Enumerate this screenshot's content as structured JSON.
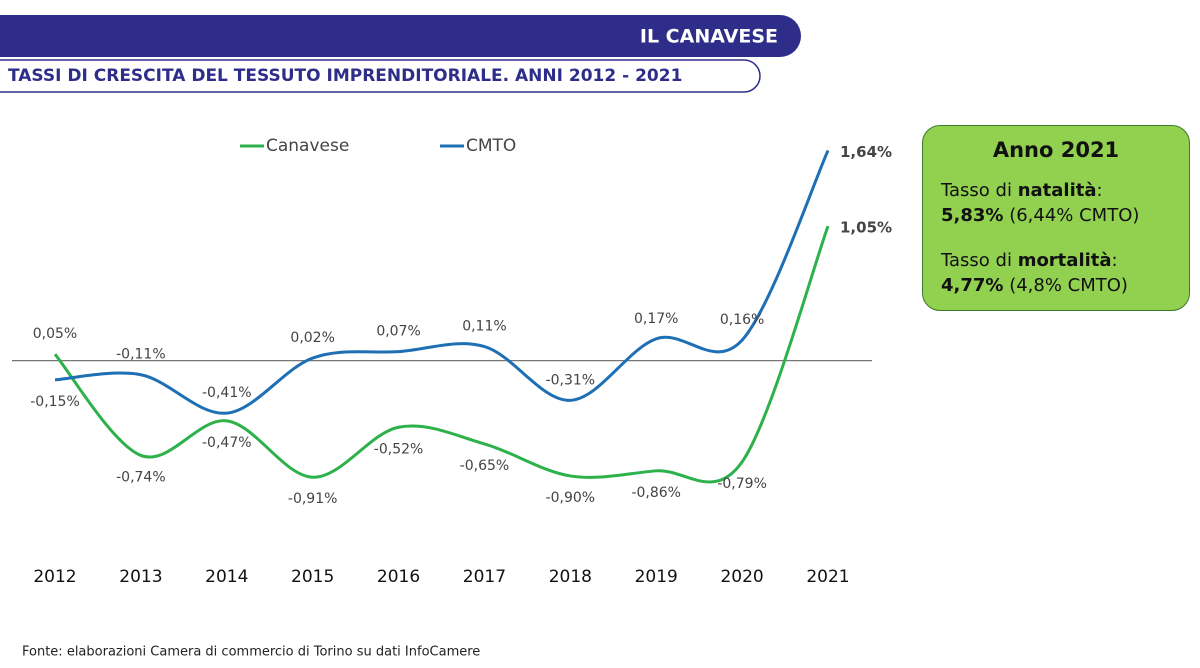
{
  "header": {
    "banner": "IL CANAVESE",
    "subtitle": "TASSI DI CRESCITA DEL TESSUTO IMPRENDITORIALE. ANNI 2012 - 2021"
  },
  "chart_data": {
    "type": "line",
    "categories": [
      "2012",
      "2013",
      "2014",
      "2015",
      "2016",
      "2017",
      "2018",
      "2019",
      "2020",
      "2021"
    ],
    "series": [
      {
        "name": "Canavese",
        "color": "#2db14b",
        "values": [
          0.05,
          -0.74,
          -0.47,
          -0.91,
          -0.52,
          -0.65,
          -0.9,
          -0.86,
          -0.79,
          1.05
        ],
        "value_labels": [
          "0,05%",
          "-0,74%",
          "-0,47%",
          "-0,91%",
          "-0,52%",
          "-0,65%",
          "-0,90%",
          "-0,86%",
          "-0,79%",
          "1,05%"
        ]
      },
      {
        "name": "CMTO",
        "color": "#1f6fb5",
        "values": [
          -0.15,
          -0.11,
          -0.41,
          0.02,
          0.07,
          0.11,
          -0.31,
          0.17,
          0.16,
          1.64
        ],
        "value_labels": [
          "-0,15%",
          "-0,11%",
          "-0,41%",
          "0,02%",
          "0,07%",
          "0,11%",
          "-0,31%",
          "0,17%",
          "0,16%",
          "1,64%"
        ]
      }
    ],
    "ylim": [
      -1.4,
      1.8
    ]
  },
  "info_box": {
    "title": "Anno 2021",
    "items": [
      {
        "prefix": "Tasso di ",
        "emphasis": "natalità",
        "suffix": ":",
        "value": "5,83%",
        "detail": "(6,44% CMTO)"
      },
      {
        "prefix": "Tasso di ",
        "emphasis": "mortalità",
        "suffix": ":",
        "value": "4,77%",
        "detail": "(4,8% CMTO)"
      }
    ]
  },
  "footer": "Fonte: elaborazioni Camera di commercio di Torino su dati InfoCamere"
}
